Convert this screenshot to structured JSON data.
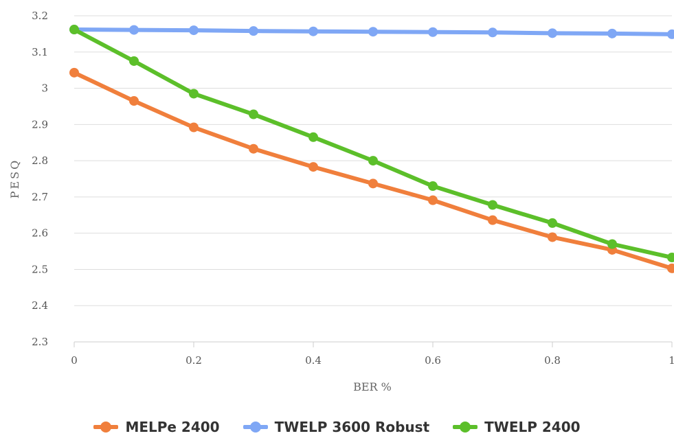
{
  "chart_data": {
    "type": "line",
    "title": "",
    "xlabel": "BER %",
    "ylabel": "PESQ",
    "x": [
      0,
      0.1,
      0.2,
      0.3,
      0.4,
      0.5,
      0.6,
      0.7,
      0.8,
      0.9,
      1
    ],
    "xticks": [
      "0",
      "0.2",
      "0.4",
      "0.6",
      "0.8",
      "1"
    ],
    "xlim": [
      0,
      1
    ],
    "yticks": [
      "2.3",
      "2.4",
      "2.5",
      "2.6",
      "2.7",
      "2.8",
      "2.9",
      "3",
      "3.1",
      "3.2"
    ],
    "ylim": [
      2.3,
      3.2
    ],
    "grid": true,
    "legend_position": "bottom",
    "series": [
      {
        "name": "MELPe 2400",
        "color": "#f07f3c",
        "values": [
          3.043,
          2.965,
          2.892,
          2.833,
          2.783,
          2.737,
          2.691,
          2.636,
          2.589,
          2.554,
          2.503
        ]
      },
      {
        "name": "TWELP 3600 Robust",
        "color": "#7fa7f5",
        "values": [
          3.162,
          3.161,
          3.16,
          3.158,
          3.157,
          3.156,
          3.155,
          3.154,
          3.152,
          3.151,
          3.149
        ]
      },
      {
        "name": "TWELP 2400",
        "color": "#5cbf2a",
        "values": [
          3.162,
          3.075,
          2.985,
          2.928,
          2.865,
          2.8,
          2.73,
          2.678,
          2.628,
          2.57,
          2.533
        ]
      }
    ]
  }
}
